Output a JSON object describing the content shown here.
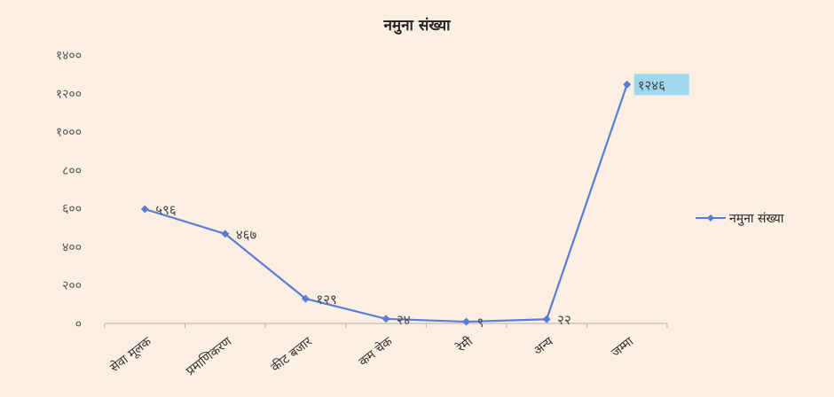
{
  "chart_data": {
    "type": "line",
    "title": "नमुना संख्या",
    "categories": [
      "सेवा मूलक",
      "प्रमाणिकरण",
      "कीट बजार",
      "कम चेक",
      "रेमी",
      "अन्य",
      "जम्मा"
    ],
    "series": [
      {
        "name": "नमुना संख्या",
        "values": [
          596,
          467,
          129,
          24,
          9,
          22,
          1246
        ],
        "data_labels": [
          "५९६",
          "४६७",
          "१२९",
          "२४",
          "९",
          "२२",
          "१२४६"
        ],
        "color": "#5b7bd5"
      }
    ],
    "y_ticks": [
      {
        "value": 0,
        "label": "०"
      },
      {
        "value": 200,
        "label": "२००"
      },
      {
        "value": 400,
        "label": "४००"
      },
      {
        "value": 600,
        "label": "६००"
      },
      {
        "value": 800,
        "label": "८००"
      },
      {
        "value": 1000,
        "label": "१०००"
      },
      {
        "value": 1200,
        "label": "१२००"
      },
      {
        "value": 1400,
        "label": "१४००"
      }
    ],
    "ylim": [
      0,
      1400
    ],
    "xlabel": "",
    "ylabel": "",
    "grid": false,
    "legend": "right",
    "background": "#fbeee2",
    "highlight_label_color": "#9fd8ee"
  }
}
